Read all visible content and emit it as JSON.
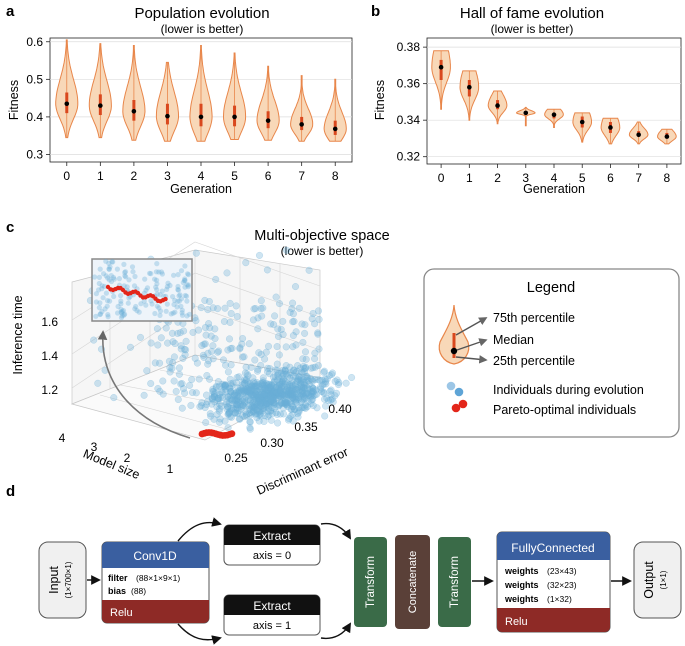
{
  "panel_labels": {
    "a": "a",
    "b": "b",
    "c": "c",
    "d": "d"
  },
  "colors": {
    "violin_fill": "#f8d8b8",
    "violin_edge": "#e8864a",
    "box": "#d9481e",
    "median": "#000000",
    "scatter": "#6aaed6",
    "pareto": "#e3261a",
    "grid": "#dddddd",
    "block_blue": "#3a5fa0",
    "block_red": "#8e2a26",
    "block_green": "#3a6b48",
    "block_brown": "#5a4038",
    "block_black": "#111111",
    "block_gray": "#f0f0f0"
  },
  "chart_data": [
    {
      "id": "a",
      "type": "violin",
      "title": "Population evolution",
      "subtitle": "(lower is better)",
      "xlabel": "Generation",
      "ylabel": "Fitness",
      "ylim": [
        0.28,
        0.61
      ],
      "yticks": [
        0.3,
        0.4,
        0.5,
        0.6
      ],
      "ytick_labels": [
        "0.3",
        "0.4",
        "0.5",
        "0.6"
      ],
      "categories": [
        "0",
        "1",
        "2",
        "3",
        "4",
        "5",
        "6",
        "7",
        "8"
      ],
      "medians": [
        0.435,
        0.43,
        0.415,
        0.402,
        0.4,
        0.4,
        0.39,
        0.38,
        0.368
      ],
      "q1": [
        0.41,
        0.405,
        0.39,
        0.38,
        0.375,
        0.375,
        0.37,
        0.365,
        0.352
      ],
      "q3": [
        0.465,
        0.46,
        0.445,
        0.435,
        0.435,
        0.43,
        0.415,
        0.4,
        0.39
      ],
      "mins": [
        0.345,
        0.345,
        0.338,
        0.335,
        0.335,
        0.34,
        0.338,
        0.335,
        0.335
      ],
      "maxs": [
        0.605,
        0.595,
        0.59,
        0.545,
        0.59,
        0.57,
        0.535,
        0.51,
        0.5
      ]
    },
    {
      "id": "b",
      "type": "violin",
      "title": "Hall of fame evolution",
      "subtitle": "(lower is better)",
      "xlabel": "Generation",
      "ylabel": "Fitness",
      "ylim": [
        0.316,
        0.385
      ],
      "yticks": [
        0.32,
        0.34,
        0.36,
        0.38
      ],
      "ytick_labels": [
        "0.32",
        "0.34",
        "0.36",
        "0.38"
      ],
      "categories": [
        "0",
        "1",
        "2",
        "3",
        "4",
        "5",
        "6",
        "7",
        "8"
      ],
      "medians": [
        0.369,
        0.358,
        0.348,
        0.344,
        0.343,
        0.339,
        0.336,
        0.332,
        0.331
      ],
      "q1": [
        0.362,
        0.353,
        0.346,
        0.344,
        0.341,
        0.336,
        0.333,
        0.331,
        0.33
      ],
      "q3": [
        0.373,
        0.362,
        0.351,
        0.345,
        0.344,
        0.342,
        0.339,
        0.334,
        0.333
      ],
      "mins": [
        0.346,
        0.34,
        0.338,
        0.337,
        0.336,
        0.328,
        0.327,
        0.327,
        0.327
      ],
      "maxs": [
        0.378,
        0.367,
        0.356,
        0.347,
        0.346,
        0.344,
        0.341,
        0.339,
        0.335
      ]
    },
    {
      "id": "c",
      "type": "scatter3d",
      "title": "Multi-objective space",
      "subtitle": "(lower is better)",
      "xlabel": "Discriminant error",
      "ylabel": "Model size",
      "zlabel": "Inference time",
      "x_ticks": [
        "0.25",
        "0.30",
        "0.35",
        "0.40"
      ],
      "y_ticks": [
        "1",
        "2",
        "3",
        "4"
      ],
      "z_ticks": [
        "1.2",
        "1.4",
        "1.6"
      ],
      "series": [
        {
          "name": "Individuals during evolution",
          "count": 900
        },
        {
          "name": "Pareto-optimal individuals",
          "count": 14
        }
      ]
    }
  ],
  "legend": {
    "title": "Legend",
    "p75": "75th percentile",
    "median": "Median",
    "p25": "25th percentile",
    "individuals": "Individuals during evolution",
    "pareto": "Pareto-optimal individuals"
  },
  "diagram": {
    "input": {
      "name": "Input",
      "shape": "(1×700×1)"
    },
    "conv": {
      "header": "Conv1D",
      "filter_key": "filter",
      "filter_val": "(88×1×9×1)",
      "bias_key": "bias",
      "bias_val": "(88)",
      "activation": "Relu"
    },
    "extract1": {
      "header": "Extract",
      "param": "axis = 0"
    },
    "extract2": {
      "header": "Extract",
      "param": "axis = 1"
    },
    "transform1": "Transform",
    "concat": "Concatenate",
    "transform2": "Transform",
    "fc": {
      "header": "FullyConnected",
      "w_key": "weights",
      "w1": "(23×43)",
      "w2": "(32×23)",
      "w3": "(1×32)",
      "activation": "Relu"
    },
    "output": {
      "name": "Output",
      "shape": "(1×1)"
    }
  }
}
